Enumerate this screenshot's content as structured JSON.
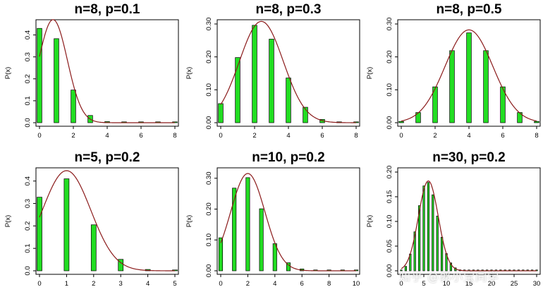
{
  "colors": {
    "bar_fill": "#22dd22",
    "bar_stroke": "#000000",
    "curve": "#8b1a1a",
    "axis": "#000000"
  },
  "watermark": "知乎 @郭小宝同学",
  "chart_data": [
    {
      "type": "bar",
      "title": "n=8, p=0.1",
      "ylabel": "P(x)",
      "x": [
        0,
        1,
        2,
        3,
        4,
        5,
        6,
        7,
        8
      ],
      "values": [
        0.43,
        0.383,
        0.149,
        0.033,
        0.005,
        0.0004,
        0,
        0,
        0
      ],
      "xticks": [
        0,
        2,
        4,
        6,
        8
      ],
      "yticks": [
        "0.0",
        "0.1",
        "0.2",
        "0.3",
        "0.4"
      ],
      "xlim": [
        0,
        8
      ],
      "ylim": [
        0,
        0.45
      ],
      "curve": {
        "mean": 0.8,
        "sd": 0.849
      }
    },
    {
      "type": "bar",
      "title": "n=8, p=0.3",
      "ylabel": "P(x)",
      "x": [
        0,
        1,
        2,
        3,
        4,
        5,
        6,
        7,
        8
      ],
      "values": [
        0.058,
        0.198,
        0.296,
        0.254,
        0.136,
        0.047,
        0.01,
        0.001,
        0.0001
      ],
      "xticks": [
        0,
        2,
        4,
        6,
        8
      ],
      "yticks": [
        "0.00",
        "0.10",
        "0.20",
        "0.30"
      ],
      "xlim": [
        0,
        8
      ],
      "ylim": [
        0,
        0.3
      ],
      "curve": {
        "mean": 2.4,
        "sd": 1.296
      }
    },
    {
      "type": "bar",
      "title": "n=8, p=0.5",
      "ylabel": "P(x)",
      "x": [
        0,
        1,
        2,
        3,
        4,
        5,
        6,
        7,
        8
      ],
      "values": [
        0.004,
        0.031,
        0.109,
        0.219,
        0.273,
        0.219,
        0.109,
        0.031,
        0.004
      ],
      "xticks": [
        0,
        2,
        4,
        6,
        8
      ],
      "yticks": [
        "0.00",
        "0.10",
        "0.20",
        "0.30"
      ],
      "xlim": [
        0,
        8
      ],
      "ylim": [
        0,
        0.3
      ],
      "curve": {
        "mean": 4,
        "sd": 1.414
      }
    },
    {
      "type": "bar",
      "title": "n=5, p=0.2",
      "ylabel": "P(x)",
      "x": [
        0,
        1,
        2,
        3,
        4,
        5
      ],
      "values": [
        0.328,
        0.41,
        0.205,
        0.051,
        0.006,
        0.0003
      ],
      "xticks": [
        0,
        1,
        2,
        3,
        4,
        5
      ],
      "yticks": [
        "0.0",
        "0.1",
        "0.2",
        "0.3",
        "0.4"
      ],
      "xlim": [
        0,
        5
      ],
      "ylim": [
        0,
        0.44
      ],
      "curve": {
        "mean": 1,
        "sd": 0.894
      }
    },
    {
      "type": "bar",
      "title": "n=10, p=0.2",
      "ylabel": "P(x)",
      "x": [
        0,
        1,
        2,
        3,
        4,
        5,
        6,
        7,
        8,
        9,
        10
      ],
      "values": [
        0.107,
        0.268,
        0.302,
        0.201,
        0.088,
        0.026,
        0.006,
        0.001,
        0.0001,
        0,
        0
      ],
      "xticks": [
        0,
        2,
        4,
        6,
        8,
        10
      ],
      "yticks": [
        "0.00",
        "0.10",
        "0.20",
        "0.30"
      ],
      "xlim": [
        0,
        10
      ],
      "ylim": [
        0,
        0.32
      ],
      "curve": {
        "mean": 2,
        "sd": 1.265
      }
    },
    {
      "type": "bar",
      "title": "n=30, p=0.2",
      "ylabel": "P(x)",
      "x": [
        0,
        1,
        2,
        3,
        4,
        5,
        6,
        7,
        8,
        9,
        10,
        11,
        12,
        13,
        14,
        15,
        16,
        17,
        18,
        19,
        20,
        21,
        22,
        23,
        24,
        25,
        26,
        27,
        28,
        29,
        30
      ],
      "values": [
        0.001,
        0.009,
        0.034,
        0.079,
        0.132,
        0.172,
        0.179,
        0.154,
        0.111,
        0.068,
        0.035,
        0.016,
        0.006,
        0.002,
        0.001,
        0.0002,
        0,
        0,
        0,
        0,
        0,
        0,
        0,
        0,
        0,
        0,
        0,
        0,
        0,
        0,
        0
      ],
      "xticks": [
        0,
        5,
        10,
        15,
        20,
        25,
        30
      ],
      "yticks": [
        "0.00",
        "0.05",
        "0.10",
        "0.15",
        "0.20"
      ],
      "xlim": [
        0,
        30
      ],
      "ylim": [
        0,
        0.2
      ],
      "curve": {
        "mean": 6,
        "sd": 2.191
      }
    }
  ]
}
